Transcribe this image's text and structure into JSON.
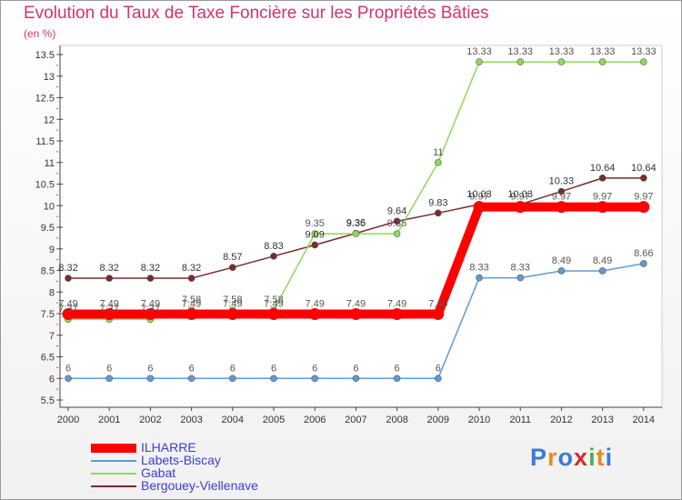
{
  "title": "Evolution du Taux de Taxe Foncière sur les Propriétés Bâties",
  "subtitle": "(en %)",
  "logo": "Proxiti",
  "chart_data": {
    "type": "line",
    "title": "Evolution du Taux de Taxe Foncière sur les Propriétés Bâties",
    "ylabel": "(en %)",
    "xlabel": "",
    "x": [
      "2000",
      "2001",
      "2002",
      "2003",
      "2004",
      "2005",
      "2006",
      "2007",
      "2008",
      "2009",
      "2010",
      "2011",
      "2012",
      "2013",
      "2014"
    ],
    "ylim": [
      5.5,
      13.5
    ],
    "yticks": [
      "5.5",
      "6",
      "6.5",
      "7",
      "7.5",
      "8",
      "8.5",
      "9",
      "9.5",
      "10",
      "10.5",
      "11",
      "11.5",
      "12",
      "12.5",
      "13",
      "13.5"
    ],
    "grid": false,
    "legend_position": "bottom-left",
    "series": [
      {
        "name": "ILHARRE",
        "color": "#ff0000",
        "values": [
          7.49,
          7.49,
          7.49,
          7.49,
          7.49,
          7.49,
          7.49,
          7.49,
          7.49,
          7.49,
          9.97,
          9.97,
          9.97,
          9.97,
          9.97
        ],
        "labels": [
          "7.49",
          "7.49",
          "7.49",
          "7.49",
          "7.49",
          "7.49",
          "7.49",
          "7.49",
          "7.49",
          "7.49",
          "9.97",
          "9.97",
          "9.97",
          "9.97",
          "9.97"
        ]
      },
      {
        "name": "Labets-Biscay",
        "color": "#5d9bd6",
        "values": [
          6,
          6,
          6,
          6,
          6,
          6,
          6,
          6,
          6,
          6,
          8.33,
          8.33,
          8.49,
          8.49,
          8.66
        ],
        "labels": [
          "6",
          "6",
          "6",
          "6",
          "6",
          "6",
          "6",
          "6",
          "6",
          "6",
          "8.33",
          "8.33",
          "8.49",
          "8.49",
          "8.66"
        ]
      },
      {
        "name": "Gabat",
        "color": "#8ed95a",
        "values": [
          7.37,
          7.37,
          7.37,
          7.58,
          7.58,
          7.58,
          9.35,
          9.35,
          9.35,
          11,
          13.33,
          13.33,
          13.33,
          13.33,
          13.33
        ],
        "labels": [
          "7.37",
          "7.37",
          "7.37",
          "7.58",
          "7.58",
          "7.58",
          "9.35",
          "9.35",
          "9.35",
          "11",
          "13.33",
          "13.33",
          "13.33",
          "13.33",
          "13.33"
        ]
      },
      {
        "name": "Bergouey-Viellenave",
        "color": "#7a2a2a",
        "values": [
          8.32,
          8.32,
          8.32,
          8.32,
          8.57,
          8.83,
          9.09,
          9.36,
          9.64,
          9.83,
          10.03,
          10.03,
          10.33,
          10.64,
          10.64
        ],
        "labels": [
          "8.32",
          "8.32",
          "8.32",
          "8.32",
          "8.57",
          "8.83",
          "9.09",
          "9.36",
          "9.64",
          "9.83",
          "10.03",
          "10.03",
          "10.33",
          "10.64",
          "10.64"
        ]
      }
    ]
  }
}
